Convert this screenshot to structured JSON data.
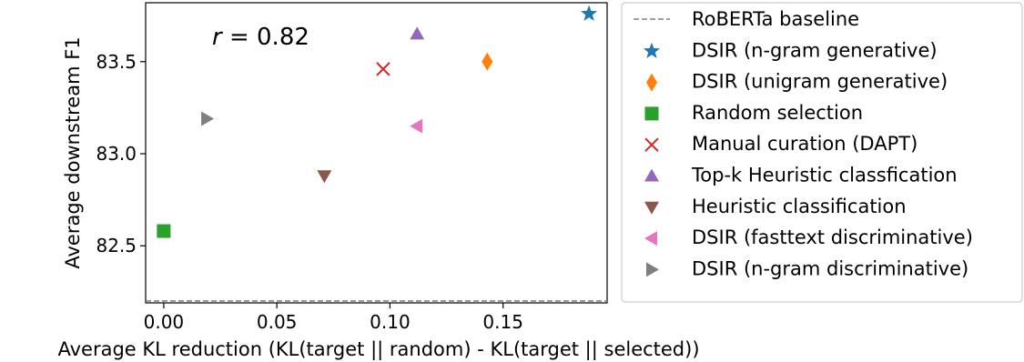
{
  "chart_data": {
    "type": "scatter",
    "title": "",
    "xlabel": "Average KL reduction (KL(target || random) - KL(target || selected))",
    "ylabel": "Average downstream F1",
    "xlim": [
      -0.008,
      0.196
    ],
    "ylim": [
      82.19,
      83.82
    ],
    "x_ticks": [
      0.0,
      0.05,
      0.1,
      0.15
    ],
    "x_tick_labels": [
      "0.00",
      "0.05",
      "0.10",
      "0.15"
    ],
    "y_ticks": [
      82.5,
      83.0,
      83.5
    ],
    "y_tick_labels": [
      "82.5",
      "83.0",
      "83.5"
    ],
    "grid": false,
    "legend_position": "outside-right",
    "annotation": {
      "symbol": "r",
      "text": " = 0.82",
      "value": 0.82
    },
    "baseline": {
      "name": "RoBERTa baseline",
      "y": 82.2,
      "color": "#808080",
      "style": "dashed"
    },
    "series": [
      {
        "name": "DSIR (n-gram generative)",
        "x": 0.188,
        "y": 83.76,
        "marker": "star",
        "color": "#1f77b4"
      },
      {
        "name": "DSIR (unigram generative)",
        "x": 0.143,
        "y": 83.5,
        "marker": "thin-diamond",
        "color": "#ff7f0e"
      },
      {
        "name": "Random selection",
        "x": 0.0,
        "y": 82.58,
        "marker": "square",
        "color": "#2ca02c"
      },
      {
        "name": "Manual curation (DAPT)",
        "x": 0.097,
        "y": 83.46,
        "marker": "x",
        "color": "#d62728"
      },
      {
        "name": "Top-k Heuristic classfication",
        "x": 0.112,
        "y": 83.65,
        "marker": "triangle-up",
        "color": "#9467bd"
      },
      {
        "name": "Heuristic classification",
        "x": 0.071,
        "y": 82.88,
        "marker": "triangle-down",
        "color": "#8c564b"
      },
      {
        "name": "DSIR (fasttext discriminative)",
        "x": 0.112,
        "y": 83.15,
        "marker": "triangle-left",
        "color": "#e377c2"
      },
      {
        "name": "DSIR (n-gram discriminative)",
        "x": 0.019,
        "y": 83.19,
        "marker": "triangle-right",
        "color": "#7f7f7f"
      }
    ]
  }
}
